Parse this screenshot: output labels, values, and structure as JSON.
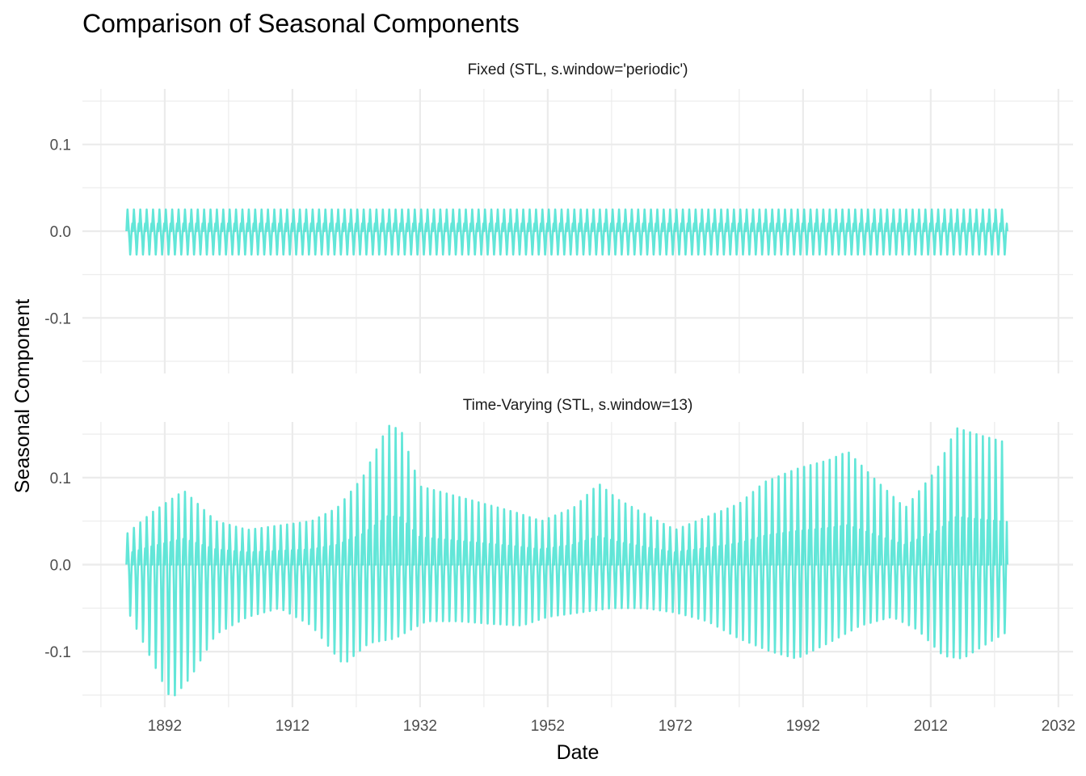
{
  "chart_data": {
    "type": "line",
    "title": "Comparison of Seasonal Components",
    "xlabel": "Date",
    "ylabel": "Seasonal Component",
    "x_ticks": [
      "1892",
      "1912",
      "1932",
      "1952",
      "1972",
      "1992",
      "2012",
      "2032"
    ],
    "xlim": [
      1879.1,
      2034.3
    ],
    "ylim": [
      -0.164,
      0.164
    ],
    "y_ticks": [
      -0.1,
      0.0,
      0.1
    ],
    "y_tick_labels": [
      "-0.1",
      "0.0",
      "0.1"
    ],
    "grid": true,
    "line_color": "#40E0D0",
    "start_year": 1886,
    "end_year": 2024,
    "panels": [
      {
        "name": "Fixed (STL, s.window='periodic')",
        "amplitude_peak_max": [
          [
            1886,
            0.025
          ],
          [
            2024,
            0.025
          ]
        ],
        "amplitude_trough_min": [
          [
            1886,
            -0.027
          ],
          [
            2024,
            -0.027
          ]
        ]
      },
      {
        "name": "Time-Varying (STL, s.window=13)",
        "amplitude_peak_max": [
          [
            1886,
            0.035
          ],
          [
            1890,
            0.06
          ],
          [
            1895,
            0.085
          ],
          [
            1900,
            0.05
          ],
          [
            1905,
            0.04
          ],
          [
            1910,
            0.045
          ],
          [
            1915,
            0.05
          ],
          [
            1919,
            0.065
          ],
          [
            1923,
            0.1
          ],
          [
            1927,
            0.16
          ],
          [
            1929,
            0.155
          ],
          [
            1932,
            0.09
          ],
          [
            1937,
            0.08
          ],
          [
            1942,
            0.07
          ],
          [
            1947,
            0.06
          ],
          [
            1951,
            0.05
          ],
          [
            1956,
            0.065
          ],
          [
            1960,
            0.093
          ],
          [
            1963,
            0.075
          ],
          [
            1968,
            0.055
          ],
          [
            1972,
            0.04
          ],
          [
            1977,
            0.055
          ],
          [
            1982,
            0.07
          ],
          [
            1986,
            0.095
          ],
          [
            1991,
            0.11
          ],
          [
            1996,
            0.12
          ],
          [
            1999,
            0.13
          ],
          [
            2003,
            0.1
          ],
          [
            2008,
            0.065
          ],
          [
            2013,
            0.11
          ],
          [
            2016,
            0.157
          ],
          [
            2020,
            0.148
          ],
          [
            2024,
            0.14
          ]
        ],
        "amplitude_trough_min": [
          [
            1886,
            -0.05
          ],
          [
            1890,
            -0.11
          ],
          [
            1893,
            -0.155
          ],
          [
            1896,
            -0.13
          ],
          [
            1900,
            -0.08
          ],
          [
            1905,
            -0.06
          ],
          [
            1910,
            -0.05
          ],
          [
            1915,
            -0.07
          ],
          [
            1920,
            -0.115
          ],
          [
            1924,
            -0.09
          ],
          [
            1928,
            -0.085
          ],
          [
            1933,
            -0.065
          ],
          [
            1938,
            -0.065
          ],
          [
            1943,
            -0.068
          ],
          [
            1948,
            -0.07
          ],
          [
            1952,
            -0.06
          ],
          [
            1957,
            -0.055
          ],
          [
            1962,
            -0.05
          ],
          [
            1967,
            -0.05
          ],
          [
            1972,
            -0.055
          ],
          [
            1977,
            -0.065
          ],
          [
            1982,
            -0.085
          ],
          [
            1987,
            -0.1
          ],
          [
            1991,
            -0.108
          ],
          [
            1996,
            -0.09
          ],
          [
            2001,
            -0.07
          ],
          [
            2006,
            -0.06
          ],
          [
            2010,
            -0.075
          ],
          [
            2014,
            -0.105
          ],
          [
            2017,
            -0.108
          ],
          [
            2021,
            -0.09
          ],
          [
            2024,
            -0.077
          ]
        ]
      }
    ]
  }
}
